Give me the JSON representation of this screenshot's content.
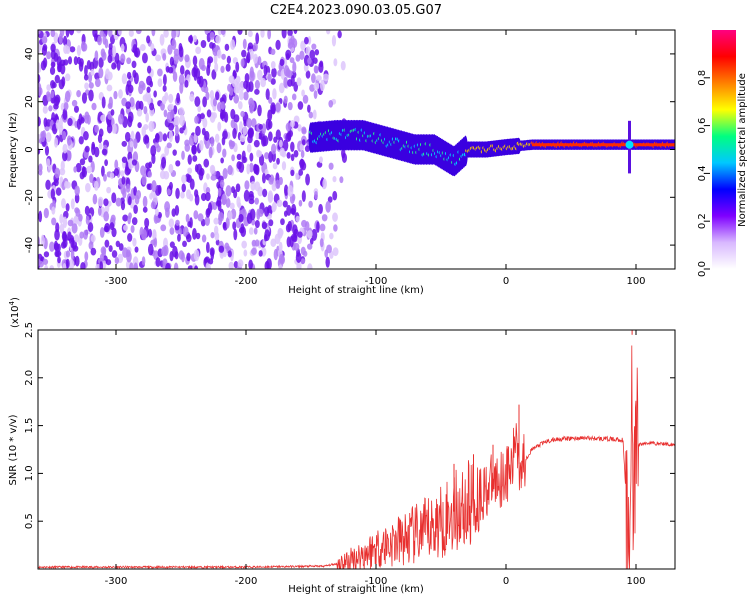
{
  "title": "C2E4.2023.090.03.05.G07",
  "colors": {
    "accent_line": "#e8302f",
    "blob": "#6a1ee8",
    "frame": "#000000"
  },
  "chart_data": [
    {
      "type": "heatmap",
      "xlabel": "Height of straight line (km)",
      "ylabel": "Frequency (Hz)",
      "xlim": [
        -360,
        130
      ],
      "ylim": [
        -50,
        50
      ],
      "xticks": [
        -300,
        -200,
        -100,
        0,
        100
      ],
      "yticks": [
        -40,
        -20,
        0,
        20,
        40
      ],
      "colorbar": {
        "label": "Normalized spectral amplitude",
        "range": [
          0.0,
          1.0
        ],
        "ticks": [
          "0.0",
          "0.2",
          "0.4",
          "0.6",
          "0.8"
        ],
        "tick_values": [
          0.0,
          0.2,
          0.4,
          0.6,
          0.8
        ],
        "colormap": [
          "#ffffff",
          "#d8b8ff",
          "#7f00ff",
          "#0000ff",
          "#00c8ff",
          "#00ff80",
          "#ffff00",
          "#ff8000",
          "#ff0000",
          "#ff0080"
        ]
      },
      "features": {
        "noise_region_x": [
          -360,
          -120
        ],
        "signal_band": [
          [
            -150,
            5
          ],
          [
            -130,
            6
          ],
          [
            -110,
            6
          ],
          [
            -90,
            3
          ],
          [
            -70,
            0
          ],
          [
            -55,
            0
          ],
          [
            -40,
            -5
          ],
          [
            -30,
            0
          ],
          [
            -15,
            0
          ],
          [
            0,
            1
          ],
          [
            20,
            2
          ],
          [
            60,
            2
          ],
          [
            100,
            2
          ],
          [
            130,
            2
          ]
        ],
        "spike_x": 95
      }
    },
    {
      "type": "line",
      "xlabel": "Height of straight line (km)",
      "ylabel": "SNR (10 * v/v)",
      "multiplier": "(x10",
      "multiplier_exp": "4",
      "multiplier_close": ")",
      "xlim": [
        -360,
        130
      ],
      "ylim": [
        0,
        2.5
      ],
      "xticks": [
        -300,
        -200,
        -100,
        0,
        100
      ],
      "yticks": [
        "0.5",
        "1.0",
        "1.5",
        "2.0",
        "2.5"
      ],
      "ytick_values": [
        0.5,
        1.0,
        1.5,
        2.0,
        2.5
      ],
      "series": [
        {
          "color": "#e8302f",
          "x": [
            -360,
            -300,
            -200,
            -140,
            -120,
            -100,
            -80,
            -60,
            -50,
            -40,
            -30,
            -20,
            -10,
            0,
            5,
            8,
            10,
            15,
            20,
            30,
            40,
            60,
            80,
            90,
            95,
            97,
            98,
            100,
            102,
            110,
            130
          ],
          "y": [
            0.02,
            0.02,
            0.02,
            0.03,
            0.08,
            0.22,
            0.3,
            0.4,
            0.5,
            0.6,
            0.65,
            0.78,
            0.9,
            1.0,
            1.05,
            1.5,
            1.1,
            1.15,
            1.25,
            1.33,
            1.36,
            1.37,
            1.36,
            1.35,
            0.05,
            2.45,
            0.2,
            1.4,
            1.3,
            1.32,
            1.3
          ],
          "peak_values": {
            "x": [
              -40,
              -25,
              -10,
              10,
              97
            ],
            "y": [
              1.1,
              1.2,
              1.3,
              1.72,
              2.55
            ]
          }
        }
      ]
    }
  ]
}
